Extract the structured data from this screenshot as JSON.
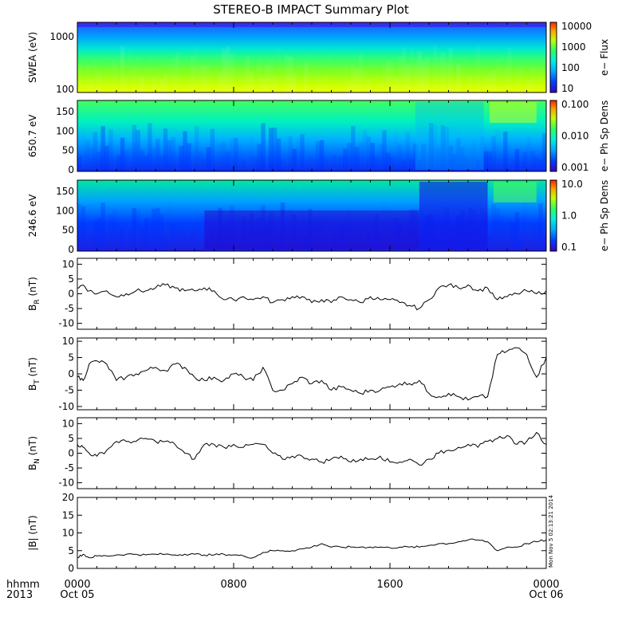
{
  "chart_data": {
    "title": "STEREO-B IMPACT Summary Plot",
    "type": "line",
    "time_axis": {
      "ticks": [
        {
          "hhmm": "0000",
          "date": "Oct 05"
        },
        {
          "hhmm": "0800",
          "date": ""
        },
        {
          "hhmm": "1600",
          "date": ""
        },
        {
          "hhmm": "0000",
          "date": "Oct 06"
        }
      ],
      "corner_labels": [
        "hhmm",
        "2013"
      ],
      "range_hours": [
        0,
        24
      ]
    },
    "timestamp_note": "Mon Nov  5 02:13:21 2014",
    "panels": [
      {
        "type": "heatmap",
        "ylabel": "SWEA (eV)",
        "yscale": "log",
        "yticks": [
          "1000",
          "100"
        ],
        "colorbar_label": "e− Flux",
        "colorbar_ticks": [
          "10000",
          "1000",
          "100",
          "10"
        ]
      },
      {
        "type": "heatmap",
        "ylabel": "650.7 eV",
        "yticks": [
          "150",
          "100",
          "50",
          "0"
        ],
        "ylim": [
          0,
          180
        ],
        "colorbar_label": "e− Ph Sp Dens",
        "colorbar_ticks": [
          "0.100",
          "0.010",
          "0.001"
        ]
      },
      {
        "type": "heatmap",
        "ylabel": "246.6 eV",
        "yticks": [
          "150",
          "100",
          "50",
          "0"
        ],
        "ylim": [
          0,
          180
        ],
        "colorbar_label": "e− Ph Sp Dens",
        "colorbar_ticks": [
          "10.0",
          "1.0",
          "0.1"
        ]
      },
      {
        "type": "line",
        "ylabel_main": "B",
        "ylabel_sub": "R",
        "ylabel_unit": " (nT)",
        "yticks": [
          "10",
          "5",
          "0",
          "-5",
          "-10"
        ],
        "ylim": [
          -12,
          12
        ],
        "x": [
          0,
          0.3,
          0.6,
          1,
          1.5,
          2,
          2.5,
          3,
          3.5,
          4,
          4.5,
          5,
          5.5,
          6,
          6.5,
          7,
          7.5,
          8,
          8.5,
          9,
          9.5,
          10,
          10.5,
          11,
          11.5,
          12,
          12.5,
          13,
          13.5,
          14,
          14.5,
          15,
          15.5,
          16,
          16.5,
          17,
          17.5,
          18,
          18.5,
          19,
          19.5,
          20,
          20.5,
          21,
          21.5,
          22,
          22.5,
          23,
          23.5,
          24
        ],
        "values": [
          2,
          3,
          1,
          0,
          1,
          -1,
          0,
          1,
          1,
          2,
          3,
          2,
          1,
          1,
          2,
          1,
          -2,
          -2,
          -1,
          -2,
          -1,
          -3,
          -2,
          -1,
          -1,
          -3,
          -2,
          -3,
          -1,
          -2,
          -3,
          -1,
          -2,
          -2,
          -3,
          -4,
          -5,
          -2,
          2,
          3,
          2,
          3,
          1,
          2,
          -2,
          -1,
          0,
          1,
          0,
          1
        ]
      },
      {
        "type": "line",
        "ylabel_main": "B",
        "ylabel_sub": "T",
        "ylabel_unit": " (nT)",
        "yticks": [
          "10",
          "5",
          "0",
          "-5",
          "-10"
        ],
        "ylim": [
          -11,
          11
        ],
        "x": [
          0,
          0.3,
          0.6,
          1,
          1.5,
          2,
          2.5,
          3,
          3.5,
          4,
          4.5,
          5,
          5.5,
          6,
          6.5,
          7,
          7.5,
          8,
          8.5,
          9,
          9.5,
          10,
          10.5,
          11,
          11.5,
          12,
          12.5,
          13,
          13.5,
          14,
          14.5,
          15,
          15.5,
          16,
          16.5,
          17,
          17.5,
          18,
          18.5,
          19,
          19.5,
          20,
          20.5,
          21,
          21.5,
          22,
          22.5,
          23,
          23.5,
          24
        ],
        "values": [
          -1,
          -2,
          3,
          4,
          3,
          -2,
          -1,
          0,
          1,
          2,
          1,
          3,
          2,
          -1,
          -2,
          -1,
          -2,
          0,
          -1,
          -2,
          2,
          -5,
          -5,
          -3,
          -1,
          -3,
          -2,
          -5,
          -4,
          -5,
          -6,
          -5,
          -5,
          -4,
          -3,
          -3,
          -2,
          -6,
          -7,
          -6,
          -7,
          -8,
          -7,
          -7,
          6,
          7,
          8,
          6,
          -1,
          5
        ]
      },
      {
        "type": "line",
        "ylabel_main": "B",
        "ylabel_sub": "N",
        "ylabel_unit": " (nT)",
        "yticks": [
          "10",
          "5",
          "0",
          "-5",
          "-10"
        ],
        "ylim": [
          -12,
          12
        ],
        "x": [
          0,
          0.3,
          0.6,
          1,
          1.5,
          2,
          2.5,
          3,
          3.5,
          4,
          4.5,
          5,
          5.5,
          6,
          6.5,
          7,
          7.5,
          8,
          8.5,
          9,
          9.5,
          10,
          10.5,
          11,
          11.5,
          12,
          12.5,
          13,
          13.5,
          14,
          14.5,
          15,
          15.5,
          16,
          16.5,
          17,
          17.5,
          18,
          18.5,
          19,
          19.5,
          20,
          20.5,
          21,
          21.5,
          22,
          22.5,
          23,
          23.5,
          24
        ],
        "values": [
          3,
          2,
          0,
          -1,
          1,
          4,
          4,
          4,
          5,
          4,
          4,
          3,
          0,
          -2,
          3,
          3,
          2,
          3,
          2,
          3,
          3,
          0,
          -2,
          -1,
          -1,
          -2,
          -3,
          -2,
          -1,
          -3,
          -2,
          -2,
          -1,
          -3,
          -3,
          -2,
          -4,
          -2,
          0,
          1,
          2,
          3,
          2,
          4,
          5,
          6,
          3,
          4,
          7,
          3
        ]
      },
      {
        "type": "line",
        "ylabel_main": "|B| (nT)",
        "yticks": [
          "20",
          "15",
          "10",
          "5",
          "0"
        ],
        "ylim": [
          0,
          20
        ],
        "x": [
          0,
          0.3,
          0.6,
          1,
          1.5,
          2,
          2.5,
          3,
          3.5,
          4,
          4.5,
          5,
          5.5,
          6,
          6.5,
          7,
          7.5,
          8,
          8.5,
          9,
          9.5,
          10,
          10.5,
          11,
          11.5,
          12,
          12.5,
          13,
          13.5,
          14,
          14.5,
          15,
          15.5,
          16,
          16.5,
          17,
          17.5,
          18,
          18.5,
          19,
          19.5,
          20,
          20.5,
          21,
          21.5,
          22,
          22.5,
          23,
          23.5,
          24
        ],
        "values": [
          3,
          4,
          3,
          3.5,
          3.5,
          3.8,
          4,
          4,
          3.8,
          4,
          4,
          3.8,
          4,
          4,
          3.8,
          3.8,
          4,
          3.8,
          3.5,
          3,
          4.5,
          5,
          5,
          5,
          5.5,
          6,
          7,
          6,
          6,
          6,
          6,
          6,
          6,
          5.8,
          6,
          6,
          6,
          6.5,
          7,
          7,
          7.5,
          8,
          8,
          7.5,
          5,
          6,
          6,
          7,
          7.5,
          8
        ]
      }
    ]
  }
}
